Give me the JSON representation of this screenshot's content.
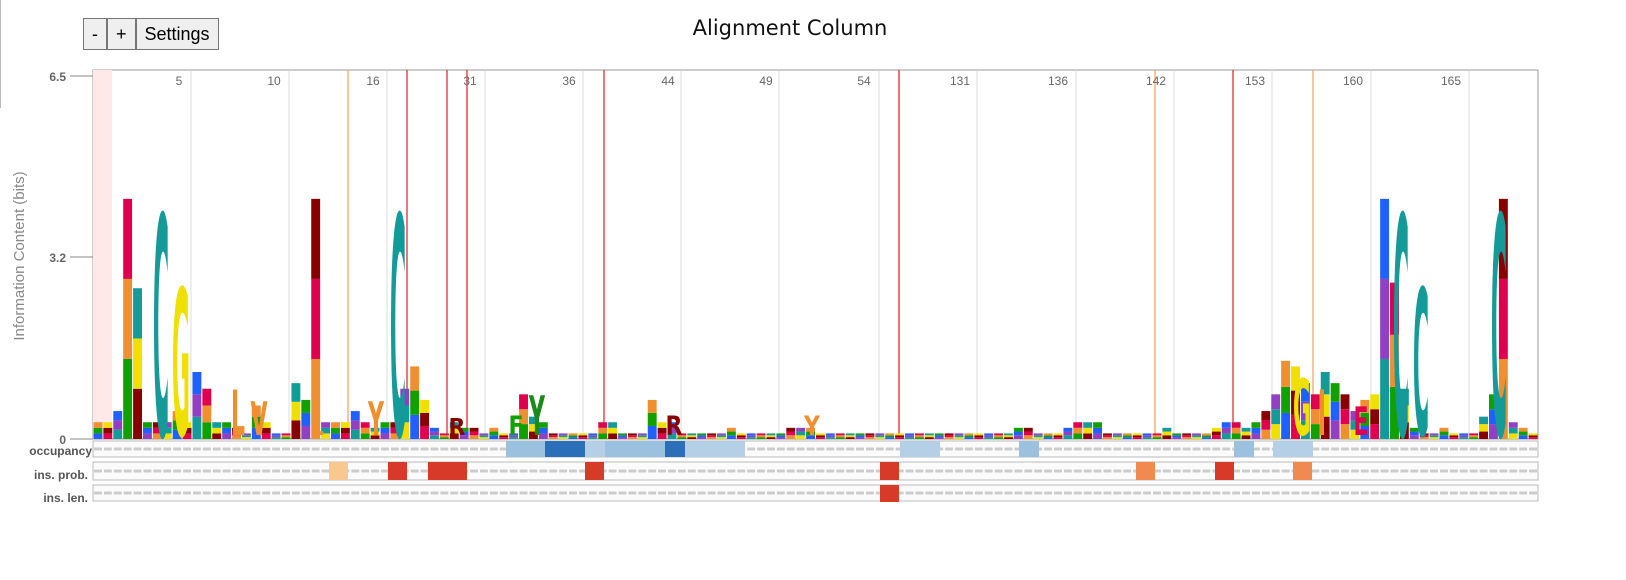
{
  "title": "Alignment Column",
  "controls": {
    "minus_label": "-",
    "plus_label": "+",
    "settings_label": "Settings"
  },
  "colors": {
    "bg_band": "#ffe8e8",
    "delete_line": "#e03030",
    "insert_line": "#f5a860",
    "teal": "#159a9a",
    "yellow": "#f0e000",
    "orange": "#f08f30",
    "green": "#10a000",
    "darkred": "#880000",
    "crimson": "#e0004d",
    "blue": "#2060ff"
  },
  "chart_data": {
    "type": "bar",
    "title": "Alignment Column",
    "ylabel": "Information Content (bits)",
    "yticks": [
      "0",
      "3.2",
      "6.5"
    ],
    "ylim": [
      0,
      6.5
    ],
    "column_labels": [
      "5",
      "10",
      "16",
      "31",
      "36",
      "44",
      "49",
      "54",
      "131",
      "136",
      "142",
      "153",
      "160",
      "165"
    ],
    "row_labels": [
      "occupancy",
      "ins. prob.",
      "ins. len."
    ],
    "series": [
      {
        "values": [
          0.3,
          0.3,
          0.5,
          4.3,
          2.7,
          0.3,
          0.3,
          0.3,
          0.5,
          0.3,
          1.2,
          0.9,
          0.3,
          0.3,
          0.2,
          0.1,
          0.6,
          0.3,
          0.1,
          0.1,
          1.0,
          0.7,
          4.3,
          0.3,
          0.3,
          0.3,
          0.5,
          0.3,
          0.2,
          0.3,
          0.3,
          0.9,
          1.3,
          0.7,
          0.2,
          0.1,
          0.3,
          0.2,
          0.2,
          0.1,
          0.2,
          0.1,
          0.1,
          0.8,
          0.4,
          0.3,
          0.1,
          0.1,
          0.1,
          0.1,
          0.1,
          0.3,
          0.3,
          0.1,
          0.1,
          0.1,
          0.7,
          0.3,
          0.3,
          0.1,
          0.1,
          0.1,
          0.1,
          0.1,
          0.2,
          0.1,
          0.1,
          0.1,
          0.1,
          0.1,
          0.2,
          0.2,
          0.2,
          0.1,
          0.1,
          0.1,
          0.1,
          0.1,
          0.1,
          0.1,
          0.1,
          0.1,
          0.1,
          0.1,
          0.1,
          0.1,
          0.1,
          0.1,
          0.1,
          0.1,
          0.1,
          0.1,
          0.1,
          0.2,
          0.2,
          0.1,
          0.1,
          0.1,
          0.2,
          0.3,
          0.3,
          0.3,
          0.1,
          0.1,
          0.1,
          0.1,
          0.1,
          0.1,
          0.2,
          0.1,
          0.1,
          0.1,
          0.1,
          0.2,
          0.3,
          0.3,
          0.2,
          0.3,
          0.5,
          0.8,
          1.4,
          1.3,
          1.0,
          0.8,
          1.2,
          1.0,
          0.8,
          0.5,
          0.7,
          0.8,
          4.3,
          2.8,
          0.9,
          0.2,
          0.1,
          0.1,
          0.2,
          0.1,
          0.1,
          0.1,
          0.4,
          0.8,
          4.3,
          0.3,
          0.2,
          0.1
        ]
      }
    ]
  },
  "glyphs": [
    {
      "c": "C",
      "x": 161,
      "h": 3.9,
      "color": "#159a9a"
    },
    {
      "c": "G",
      "x": 181,
      "h": 2.6,
      "color": "#f0e000"
    },
    {
      "c": "L",
      "x": 238,
      "h": 0.8,
      "color": "#f08f30"
    },
    {
      "c": "V",
      "x": 259,
      "h": 0.6,
      "color": "#f08f30"
    },
    {
      "c": "L",
      "x": 317,
      "h": 0.35,
      "color": "#f08f30"
    },
    {
      "c": "Y",
      "x": 376,
      "h": 0.6,
      "color": "#f08f30"
    },
    {
      "c": "C",
      "x": 398,
      "h": 3.9,
      "color": "#159a9a"
    },
    {
      "c": "R",
      "x": 457,
      "h": 0.3,
      "color": "#880000"
    },
    {
      "c": "F",
      "x": 516,
      "h": 0.35,
      "color": "#10a000"
    },
    {
      "c": "Y",
      "x": 537,
      "h": 0.7,
      "color": "#1a8a1a"
    },
    {
      "c": "R",
      "x": 674,
      "h": 0.35,
      "color": "#880000"
    },
    {
      "c": "Y",
      "x": 812,
      "h": 0.35,
      "color": "#f08f30"
    },
    {
      "c": "G",
      "x": 1302,
      "h": 1.0,
      "color": "#f0e000"
    },
    {
      "c": "I",
      "x": 1322,
      "h": 0.8,
      "color": "#f08f30"
    },
    {
      "c": "E",
      "x": 1361,
      "h": 0.5,
      "color": "#e0004d"
    },
    {
      "c": "C",
      "x": 1401,
      "h": 3.9,
      "color": "#159a9a"
    },
    {
      "c": "C",
      "x": 1421,
      "h": 2.6,
      "color": "#159a9a"
    },
    {
      "c": "C",
      "x": 1499,
      "h": 3.9,
      "color": "#159a9a"
    }
  ]
}
